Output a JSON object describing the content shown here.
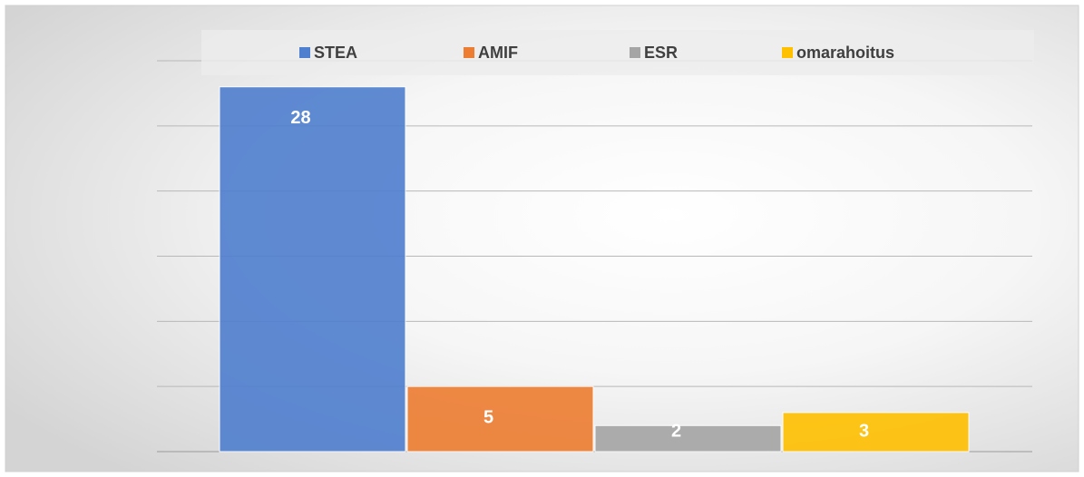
{
  "chart_data": {
    "type": "bar",
    "series": [
      {
        "name": "STEA",
        "color": "#4f7fcf",
        "values": [
          28
        ]
      },
      {
        "name": "AMIF",
        "color": "#ed7d31",
        "values": [
          5
        ]
      },
      {
        "name": "ESR",
        "color": "#a5a5a5",
        "values": [
          2
        ]
      },
      {
        "name": "omarahoitus",
        "color": "#ffc000",
        "values": [
          3
        ]
      }
    ],
    "ylim": [
      0,
      30
    ],
    "yticks": [
      0,
      5,
      10,
      15,
      20,
      25,
      30
    ],
    "grid": true,
    "legend": "top"
  }
}
